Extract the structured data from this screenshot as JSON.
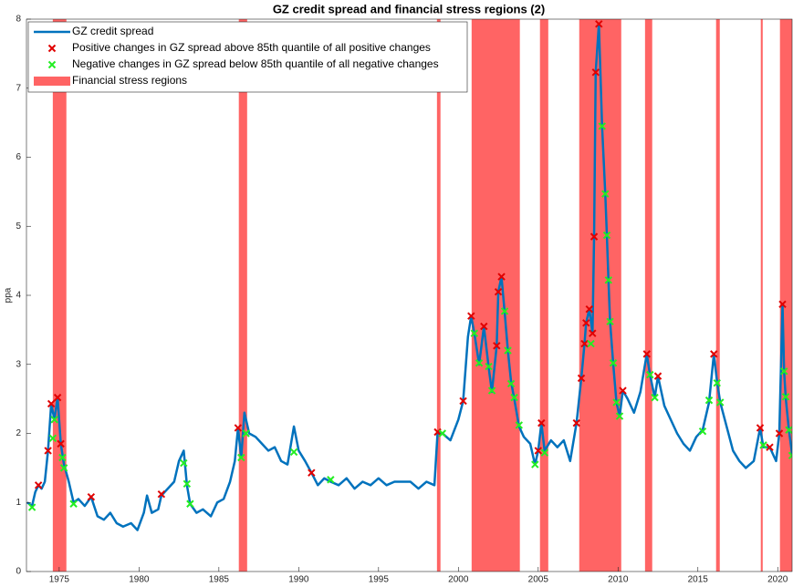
{
  "chart_data": {
    "type": "line",
    "title": "GZ credit spread and financial stress regions (2)",
    "ylabel": "ppa",
    "xlim": [
      1972.95,
      2020.9
    ],
    "ylim": [
      0,
      8
    ],
    "xticks": [
      1975,
      1980,
      1985,
      1990,
      1995,
      2000,
      2005,
      2010,
      2015,
      2020
    ],
    "yticks": [
      0,
      1,
      2,
      3,
      4,
      5,
      6,
      7,
      8
    ],
    "legend": "top-left",
    "regions": {
      "name": "Financial stress regions",
      "color": "#ff6464",
      "spans": [
        [
          1974.6,
          1975.45
        ],
        [
          1986.25,
          1986.77
        ],
        [
          1998.66,
          1998.88
        ],
        [
          2000.83,
          2003.85
        ],
        [
          2005.11,
          2005.63
        ],
        [
          2007.57,
          2010.2
        ],
        [
          2011.69,
          2012.14
        ],
        [
          2016.14,
          2016.37
        ],
        [
          2018.94,
          2019.06
        ],
        [
          2020.14,
          2020.9
        ]
      ]
    },
    "series": [
      {
        "name": "GZ credit spread",
        "type": "line",
        "color": "#0072bd",
        "x": [
          1973.0,
          1973.3,
          1973.5,
          1973.7,
          1973.9,
          1974.1,
          1974.3,
          1974.5,
          1974.7,
          1974.9,
          1975.1,
          1975.3,
          1975.6,
          1975.9,
          1976.2,
          1976.6,
          1977.0,
          1977.4,
          1977.8,
          1978.2,
          1978.6,
          1979.0,
          1979.5,
          1979.9,
          1980.3,
          1980.5,
          1980.8,
          1981.2,
          1981.4,
          1981.8,
          1982.2,
          1982.5,
          1982.8,
          1983.0,
          1983.2,
          1983.6,
          1984.0,
          1984.5,
          1984.9,
          1985.3,
          1985.7,
          1986.0,
          1986.2,
          1986.4,
          1986.6,
          1986.9,
          1987.3,
          1987.7,
          1988.1,
          1988.5,
          1988.9,
          1989.3,
          1989.7,
          1990.0,
          1990.4,
          1990.8,
          1991.2,
          1991.6,
          1992.0,
          1992.5,
          1993.0,
          1993.5,
          1994.0,
          1994.5,
          1995.0,
          1995.5,
          1996.0,
          1996.5,
          1997.0,
          1997.5,
          1998.0,
          1998.5,
          1998.7,
          1999.0,
          1999.5,
          2000.0,
          2000.3,
          2000.6,
          2000.8,
          2001.0,
          2001.3,
          2001.6,
          2001.9,
          2002.1,
          2002.4,
          2002.5,
          2002.7,
          2002.9,
          2003.1,
          2003.3,
          2003.5,
          2003.8,
          2004.1,
          2004.5,
          2004.8,
          2005.0,
          2005.2,
          2005.4,
          2005.8,
          2006.2,
          2006.6,
          2007.0,
          2007.4,
          2007.7,
          2007.9,
          2008.0,
          2008.2,
          2008.4,
          2008.5,
          2008.6,
          2008.8,
          2009.0,
          2009.2,
          2009.3,
          2009.4,
          2009.5,
          2009.7,
          2009.9,
          2010.1,
          2010.3,
          2010.6,
          2011.0,
          2011.4,
          2011.8,
          2012.0,
          2012.3,
          2012.5,
          2012.9,
          2013.3,
          2013.7,
          2014.1,
          2014.5,
          2014.9,
          2015.3,
          2015.7,
          2016.0,
          2016.2,
          2016.4,
          2016.8,
          2017.2,
          2017.6,
          2018.0,
          2018.5,
          2018.9,
          2019.1,
          2019.5,
          2019.9,
          2020.1,
          2020.3,
          2020.4,
          2020.5,
          2020.7,
          2020.9
        ],
        "values": [
          1.0,
          0.95,
          1.15,
          1.25,
          1.2,
          1.3,
          1.75,
          2.43,
          2.2,
          2.52,
          1.85,
          1.55,
          1.3,
          1.0,
          1.05,
          0.95,
          1.08,
          0.8,
          0.75,
          0.85,
          0.7,
          0.65,
          0.7,
          0.6,
          0.85,
          1.1,
          0.85,
          0.9,
          1.1,
          1.2,
          1.3,
          1.6,
          1.75,
          1.25,
          0.98,
          0.85,
          0.9,
          0.8,
          1.0,
          1.05,
          1.3,
          1.6,
          2.08,
          1.65,
          2.3,
          2.0,
          1.95,
          1.85,
          1.75,
          1.8,
          1.6,
          1.55,
          2.1,
          1.75,
          1.6,
          1.43,
          1.25,
          1.35,
          1.3,
          1.25,
          1.35,
          1.2,
          1.3,
          1.25,
          1.35,
          1.25,
          1.3,
          1.3,
          1.3,
          1.2,
          1.3,
          1.25,
          2.02,
          2.0,
          1.9,
          2.2,
          2.47,
          3.4,
          3.7,
          3.45,
          3.0,
          3.55,
          2.95,
          2.6,
          3.27,
          4.05,
          4.27,
          3.75,
          3.2,
          2.75,
          2.5,
          2.1,
          1.95,
          1.85,
          1.55,
          1.75,
          2.15,
          1.75,
          1.9,
          1.8,
          1.9,
          1.6,
          2.15,
          2.8,
          3.3,
          3.6,
          3.8,
          3.45,
          4.85,
          7.23,
          7.93,
          6.45,
          5.47,
          4.87,
          4.22,
          3.62,
          3.0,
          2.45,
          2.25,
          2.62,
          2.5,
          2.3,
          2.6,
          3.15,
          2.85,
          2.52,
          2.83,
          2.4,
          2.2,
          2.0,
          1.85,
          1.75,
          1.95,
          2.05,
          2.45,
          3.15,
          2.75,
          2.45,
          2.1,
          1.75,
          1.6,
          1.5,
          1.6,
          2.08,
          1.8,
          1.8,
          1.6,
          2.0,
          3.87,
          2.9,
          2.52,
          2.05,
          1.7
        ]
      },
      {
        "name": "Positive changes in GZ spread above 85th quantile of all positive changes",
        "type": "scatter",
        "color": "#e00000",
        "x": [
          1973.7,
          1974.3,
          1974.5,
          1974.9,
          1975.1,
          1977.0,
          1981.4,
          1986.2,
          1990.8,
          1998.7,
          2000.3,
          2000.8,
          2001.6,
          2002.4,
          2002.5,
          2002.7,
          2005.0,
          2005.2,
          2007.4,
          2007.7,
          2007.9,
          2008.0,
          2008.2,
          2008.4,
          2008.5,
          2008.6,
          2008.8,
          2010.3,
          2011.8,
          2012.5,
          2016.0,
          2018.9,
          2019.5,
          2020.1,
          2020.3
        ],
        "values": [
          1.25,
          1.75,
          2.43,
          2.52,
          1.85,
          1.08,
          1.12,
          2.08,
          1.43,
          2.02,
          2.47,
          3.7,
          3.55,
          3.27,
          4.05,
          4.27,
          1.75,
          2.15,
          2.15,
          2.8,
          3.3,
          3.6,
          3.8,
          3.45,
          4.85,
          7.23,
          7.93,
          2.62,
          3.15,
          2.83,
          3.15,
          2.08,
          1.8,
          2.0,
          3.87
        ]
      },
      {
        "name": "Negative changes in GZ spread below 85th quantile of all negative changes",
        "type": "scatter",
        "color": "#22ee22",
        "x": [
          1973.3,
          1974.6,
          1974.7,
          1975.2,
          1975.3,
          1975.9,
          1982.8,
          1983.0,
          1983.2,
          1986.4,
          1986.7,
          1989.7,
          1992.0,
          1999.0,
          2001.0,
          2001.3,
          2001.9,
          2002.1,
          2002.9,
          2003.1,
          2003.3,
          2003.5,
          2003.8,
          2004.8,
          2005.4,
          2008.3,
          2009.0,
          2009.2,
          2009.3,
          2009.4,
          2009.5,
          2009.7,
          2009.9,
          2010.1,
          2012.0,
          2012.3,
          2015.3,
          2015.7,
          2016.2,
          2016.4,
          2019.1,
          2020.4,
          2020.5,
          2020.7,
          2020.9
        ],
        "values": [
          0.93,
          1.93,
          2.2,
          1.65,
          1.5,
          0.98,
          1.57,
          1.27,
          0.98,
          1.65,
          2.0,
          1.73,
          1.33,
          2.0,
          3.45,
          3.02,
          2.97,
          2.62,
          3.77,
          3.2,
          2.72,
          2.52,
          2.12,
          1.55,
          1.72,
          3.3,
          6.45,
          5.47,
          4.87,
          4.22,
          3.62,
          3.02,
          2.45,
          2.25,
          2.85,
          2.52,
          2.03,
          2.48,
          2.73,
          2.45,
          1.83,
          2.9,
          2.53,
          2.05,
          1.68
        ]
      }
    ]
  }
}
